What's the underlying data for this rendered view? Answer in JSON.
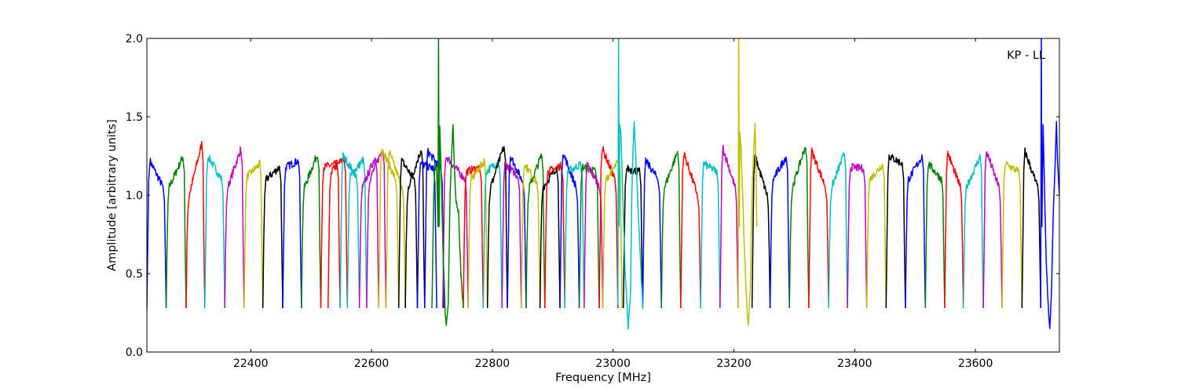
{
  "chart_data": {
    "type": "line",
    "title": "",
    "annotation": "KP - LL",
    "xlabel": "Frequency [MHz]",
    "ylabel": "Amplitude [arbitrary units]",
    "xlim": [
      22228,
      23739
    ],
    "ylim": [
      0.0,
      2.0
    ],
    "x_ticks": [
      "22400",
      "22600",
      "22800",
      "23000",
      "23200",
      "23400",
      "23600"
    ],
    "y_ticks": [
      "0.0",
      "0.5",
      "1.0",
      "1.5",
      "2.0"
    ],
    "grid": false,
    "edge_level": 0.28,
    "colors": {
      "b": "#0000ff",
      "g": "#008000",
      "r": "#ff0000",
      "c": "#00bfbf",
      "m": "#bf00bf",
      "y": "#bfbf00",
      "k": "#000000"
    },
    "segments_format": "[start_MHz, end_MHz, color, plateau_left, plateau_right]",
    "segments": [
      [
        22228,
        22260,
        "b",
        1.22,
        1.05
      ],
      [
        22260,
        22293,
        "g",
        1.05,
        1.25
      ],
      [
        22293,
        22324,
        "r",
        1.0,
        1.33
      ],
      [
        22324,
        22357,
        "c",
        1.25,
        1.1
      ],
      [
        22357,
        22389,
        "m",
        1.05,
        1.3
      ],
      [
        22389,
        22420,
        "y",
        1.12,
        1.2
      ],
      [
        22420,
        22453,
        "k",
        1.1,
        1.18
      ],
      [
        22453,
        22484,
        "b",
        1.18,
        1.22
      ],
      [
        22484,
        22516,
        "g",
        1.05,
        1.27
      ],
      [
        22516,
        22548,
        "r",
        1.18,
        1.2
      ],
      [
        22528,
        22560,
        "r",
        1.15,
        1.24
      ],
      [
        22548,
        22580,
        "c",
        1.25,
        1.12
      ],
      [
        22560,
        22592,
        "c",
        1.12,
        1.23
      ],
      [
        22580,
        22612,
        "m",
        1.05,
        1.25
      ],
      [
        22592,
        22624,
        "m",
        1.1,
        1.3
      ],
      [
        22612,
        22645,
        "y",
        1.3,
        1.1
      ],
      [
        22624,
        22656,
        "y",
        1.28,
        1.05
      ],
      [
        22645,
        22676,
        "k",
        1.22,
        1.1
      ],
      [
        22656,
        22688,
        "k",
        1.05,
        1.3
      ],
      [
        22676,
        22708,
        "b",
        1.2,
        1.17
      ],
      [
        22688,
        22720,
        "b",
        1.28,
        1.17
      ],
      [
        22718,
        22760,
        "m",
        1.25,
        1.1
      ],
      [
        22752,
        22785,
        "r",
        1.15,
        1.18
      ],
      [
        22760,
        22792,
        "y",
        1.1,
        1.22
      ],
      [
        22785,
        22816,
        "c",
        1.15,
        1.22
      ],
      [
        22792,
        22825,
        "k",
        1.05,
        1.32
      ],
      [
        22816,
        22848,
        "m",
        1.2,
        1.12
      ],
      [
        22825,
        22856,
        "b",
        1.25,
        1.08
      ],
      [
        22848,
        22879,
        "y",
        1.2,
        1.08
      ],
      [
        22856,
        22887,
        "g",
        1.05,
        1.26
      ],
      [
        22879,
        22912,
        "k",
        1.05,
        1.18
      ],
      [
        22887,
        22920,
        "r",
        1.15,
        1.19
      ],
      [
        22912,
        22944,
        "b",
        1.27,
        1.05
      ],
      [
        22920,
        22952,
        "c",
        1.15,
        1.2
      ],
      [
        22944,
        22977,
        "g",
        1.18,
        1.15
      ],
      [
        22952,
        22983,
        "m",
        1.2,
        1.05
      ],
      [
        22977,
        23008,
        "r",
        1.3,
        1.1
      ],
      [
        22983,
        23015,
        "y",
        1.1,
        1.22
      ],
      [
        23017,
        23049,
        "k",
        1.17,
        1.15
      ],
      [
        23049,
        23080,
        "b",
        1.22,
        1.1
      ],
      [
        23080,
        23112,
        "g",
        1.05,
        1.28
      ],
      [
        23112,
        23145,
        "r",
        1.27,
        1.0
      ],
      [
        23145,
        23177,
        "c",
        1.2,
        1.15
      ],
      [
        23177,
        23207,
        "m",
        1.3,
        1.05
      ],
      [
        23230,
        23260,
        "k",
        1.25,
        1.0
      ],
      [
        23260,
        23292,
        "b",
        1.1,
        1.25
      ],
      [
        23292,
        23324,
        "g",
        1.05,
        1.32
      ],
      [
        23324,
        23357,
        "r",
        1.28,
        1.05
      ],
      [
        23357,
        23388,
        "c",
        1.05,
        1.27
      ],
      [
        23388,
        23420,
        "m",
        1.18,
        1.17
      ],
      [
        23420,
        23452,
        "y",
        1.1,
        1.2
      ],
      [
        23452,
        23484,
        "k",
        1.25,
        1.2
      ],
      [
        23484,
        23517,
        "b",
        1.1,
        1.25
      ],
      [
        23517,
        23549,
        "g",
        1.2,
        1.1
      ],
      [
        23549,
        23580,
        "r",
        1.27,
        1.05
      ],
      [
        23580,
        23613,
        "c",
        1.05,
        1.25
      ],
      [
        23613,
        23644,
        "m",
        1.28,
        1.05
      ],
      [
        23644,
        23677,
        "y",
        1.2,
        1.15
      ],
      [
        23677,
        23708,
        "k",
        1.28,
        1.05
      ]
    ],
    "rfi_segments": [
      {
        "color": "g",
        "points": [
          [
            22700,
            0.28
          ],
          [
            22703,
            1.0
          ],
          [
            22705,
            1.2
          ],
          [
            22708,
            1.15
          ],
          [
            22710,
            0.8
          ],
          [
            22711,
            2.05
          ],
          [
            22712,
            0.8
          ],
          [
            22713,
            1.44
          ],
          [
            22715,
            1.2
          ],
          [
            22718,
            0.7
          ],
          [
            22722,
            0.25
          ],
          [
            22724,
            0.17
          ],
          [
            22727,
            0.3
          ],
          [
            22730,
            1.0
          ],
          [
            22732,
            1.2
          ],
          [
            22735,
            1.45
          ],
          [
            22737,
            1.2
          ],
          [
            22740,
            0.95
          ],
          [
            22744,
            0.9
          ],
          [
            22748,
            0.5
          ],
          [
            22752,
            0.28
          ]
        ]
      },
      {
        "color": "c",
        "points": [
          [
            23008,
            0.3
          ],
          [
            23009,
            2.05
          ],
          [
            23010,
            0.8
          ],
          [
            23011,
            1.45
          ],
          [
            23013,
            1.4
          ],
          [
            23016,
            1.0
          ],
          [
            23020,
            0.5
          ],
          [
            23025,
            0.15
          ],
          [
            23029,
            0.4
          ],
          [
            23031,
            1.0
          ],
          [
            23033,
            1.3
          ],
          [
            23035,
            1.47
          ],
          [
            23038,
            1.2
          ],
          [
            23041,
            0.95
          ],
          [
            23045,
            0.6
          ],
          [
            23049,
            0.28
          ]
        ]
      },
      {
        "color": "y",
        "points": [
          [
            23207,
            0.28
          ],
          [
            23208,
            2.05
          ],
          [
            23209,
            0.8
          ],
          [
            23210,
            1.4
          ],
          [
            23212,
            1.3
          ],
          [
            23214,
            1.05
          ],
          [
            23218,
            0.6
          ],
          [
            23222,
            0.25
          ],
          [
            23224,
            0.17
          ],
          [
            23227,
            0.4
          ],
          [
            23230,
            1.0
          ],
          [
            23233,
            1.3
          ],
          [
            23235,
            1.46
          ],
          [
            23237,
            1.1
          ],
          [
            23238,
            0.8
          ]
        ]
      },
      {
        "color": "b",
        "points": [
          [
            23708,
            0.28
          ],
          [
            23709,
            2.05
          ],
          [
            23710,
            0.8
          ],
          [
            23712,
            1.45
          ],
          [
            23714,
            1.1
          ],
          [
            23717,
            0.6
          ],
          [
            23721,
            0.25
          ],
          [
            23723,
            0.15
          ],
          [
            23726,
            0.4
          ],
          [
            23729,
            0.9
          ],
          [
            23732,
            1.2
          ],
          [
            23734,
            1.47
          ],
          [
            23736,
            1.2
          ],
          [
            23739,
            1.0
          ]
        ]
      }
    ]
  }
}
